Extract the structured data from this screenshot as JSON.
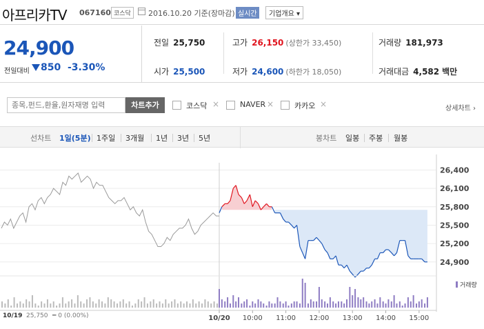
{
  "header": {
    "stock_name": "아프리카TV",
    "stock_code": "067160",
    "market_badge": "코스닥",
    "calendar_icon": "calendar-icon",
    "date_label": "2016.10.20 기준(장마감)",
    "realtime_badge": "실시간",
    "company_info_button": "기업개요 ▾"
  },
  "price": {
    "current": "24,900",
    "change_label": "전일대비",
    "direction_icon": "down-triangle-icon",
    "change": "850",
    "change_pct": "-3.30%"
  },
  "stats": {
    "prev_close_label": "전일",
    "prev_close": "25,750",
    "high_label": "고가",
    "high": "26,150",
    "upper_limit": "(상한가 33,450)",
    "volume_label": "거래량",
    "volume": "181,973",
    "open_label": "시가",
    "open": "25,500",
    "low_label": "저가",
    "low": "24,600",
    "lower_limit": "(하한가 18,050)",
    "amount_label": "거래대금",
    "amount": "4,582",
    "amount_unit": "백만"
  },
  "compare": {
    "search_placeholder": "종목,펀드,환율,원자재명 입력",
    "add_chart_button": "차트추가",
    "items": [
      "코스닥",
      "NAVER",
      "카카오"
    ],
    "remove_icon": "×",
    "detail_link": "상세차트 ›"
  },
  "tabs": {
    "line_chart_label": "선차트",
    "line_periods": [
      "1일(5분)",
      "1주일",
      "3개월",
      "1년",
      "3년",
      "5년"
    ],
    "selected_period": "1일(5분)",
    "candle_label": "봉차트",
    "candle_periods": [
      "일봉",
      "주봉",
      "월봉"
    ]
  },
  "colors": {
    "up": "#e0141e",
    "down": "#1b56b8",
    "prev_day_line": "#999999",
    "up_fill": "#f7cfd2",
    "down_fill": "#dce8f7",
    "volume_bar": "#8e7cc3",
    "prev_volume_bar": "#bbbbbb"
  },
  "chart_data": {
    "type": "line",
    "y_ticks": [
      "26,400",
      "26,100",
      "25,800",
      "25,500",
      "25,200",
      "24,900"
    ],
    "ylim": [
      24650,
      26450
    ],
    "baseline": 25750,
    "x_ticks": [
      "10/20",
      "10:00",
      "11:00",
      "12:00",
      "13:00",
      "14:00",
      "15:00"
    ],
    "x_tick_hours": [
      9,
      10,
      11,
      12,
      13,
      14,
      15
    ],
    "prev_day": {
      "label": "10/19",
      "close": "25,750",
      "change": "0 (0.00%)",
      "values": [
        25450,
        25550,
        25500,
        25600,
        25450,
        25550,
        25650,
        25700,
        25550,
        25800,
        25850,
        25750,
        25900,
        25950,
        25850,
        25950,
        26000,
        26100,
        26050,
        26000,
        26200,
        26150,
        26300,
        26250,
        26300,
        26350,
        26200,
        26250,
        26300,
        26250,
        26100,
        26200,
        26150,
        26150,
        26050,
        25950,
        25900,
        25850,
        25900,
        25900,
        25950,
        25850,
        25750,
        25800,
        25700,
        25650,
        25750,
        25550,
        25400,
        25350,
        25250,
        25150,
        25150,
        25200,
        25300,
        25250,
        25350,
        25400,
        25450,
        25450,
        25500,
        25600,
        25450,
        25350,
        25400,
        25500,
        25550,
        25600,
        25650,
        25700,
        25650,
        25650
      ]
    },
    "today": {
      "times": [
        9.0,
        9.08,
        9.17,
        9.25,
        9.33,
        9.42,
        9.5,
        9.58,
        9.67,
        9.75,
        9.83,
        9.92,
        10.0,
        10.08,
        10.17,
        10.25,
        10.33,
        10.42,
        10.5,
        10.58,
        10.67,
        10.75,
        10.83,
        10.92,
        11.0,
        11.08,
        11.17,
        11.25,
        11.33,
        11.42,
        11.5,
        11.58,
        11.67,
        11.75,
        11.83,
        11.92,
        12.0,
        12.08,
        12.17,
        12.25,
        12.33,
        12.42,
        12.5,
        12.58,
        12.67,
        12.75,
        12.83,
        12.92,
        13.0,
        13.08,
        13.17,
        13.25,
        13.33,
        13.42,
        13.5,
        13.58,
        13.67,
        13.75,
        13.83,
        13.92,
        14.0,
        14.08,
        14.17,
        14.25,
        14.33,
        14.42,
        14.5,
        14.58,
        14.67,
        14.75,
        14.83,
        14.92,
        15.0,
        15.08,
        15.17,
        15.25
      ],
      "values": [
        25700,
        25800,
        25850,
        25850,
        25900,
        26100,
        26150,
        26000,
        25950,
        25850,
        25900,
        26000,
        25800,
        25900,
        25850,
        25750,
        25800,
        25850,
        25800,
        25800,
        25700,
        25700,
        25700,
        25600,
        25550,
        25550,
        25500,
        25450,
        25500,
        25150,
        25050,
        24950,
        25250,
        25250,
        25250,
        25300,
        25250,
        25200,
        25100,
        25050,
        24950,
        24950,
        25000,
        24850,
        24850,
        24800,
        24850,
        24750,
        24700,
        24650,
        24700,
        24750,
        24750,
        24800,
        24800,
        24850,
        24950,
        24950,
        25050,
        25050,
        25100,
        25100,
        25050,
        25000,
        25050,
        25250,
        25250,
        25250,
        25000,
        24950,
        24950,
        24950,
        24950,
        24950,
        24900,
        24900
      ]
    },
    "volume_legend": "거래량",
    "prev_volume": [
      3,
      2,
      4,
      1,
      5,
      2,
      3,
      2,
      4,
      3,
      6,
      2,
      1,
      3,
      2,
      4,
      2,
      3,
      1,
      2,
      5,
      2,
      3,
      4,
      2,
      6,
      3,
      2,
      4,
      5,
      3,
      2,
      4,
      3,
      2,
      5,
      4,
      3,
      2,
      3,
      4,
      2,
      3,
      1,
      2,
      4,
      3,
      5,
      2,
      3,
      4,
      2,
      3,
      2,
      4,
      2,
      3,
      4,
      2,
      3,
      2,
      3,
      2,
      4,
      2,
      3,
      2,
      4,
      3,
      2,
      3,
      2
    ],
    "today_volume": [
      9,
      4,
      3,
      5,
      2,
      6,
      3,
      5,
      2,
      3,
      4,
      1,
      3,
      2,
      4,
      3,
      2,
      1,
      3,
      2,
      2,
      5,
      3,
      2,
      3,
      1,
      2,
      3,
      3,
      2,
      14,
      12,
      2,
      4,
      3,
      3,
      10,
      4,
      3,
      2,
      5,
      3,
      2,
      3,
      3,
      2,
      4,
      10,
      6,
      9,
      5,
      4,
      5,
      3,
      2,
      3,
      4,
      2,
      5,
      3,
      2,
      4,
      3,
      6,
      2,
      3,
      1,
      2,
      5,
      3,
      6,
      2,
      3,
      4,
      2,
      5
    ]
  }
}
